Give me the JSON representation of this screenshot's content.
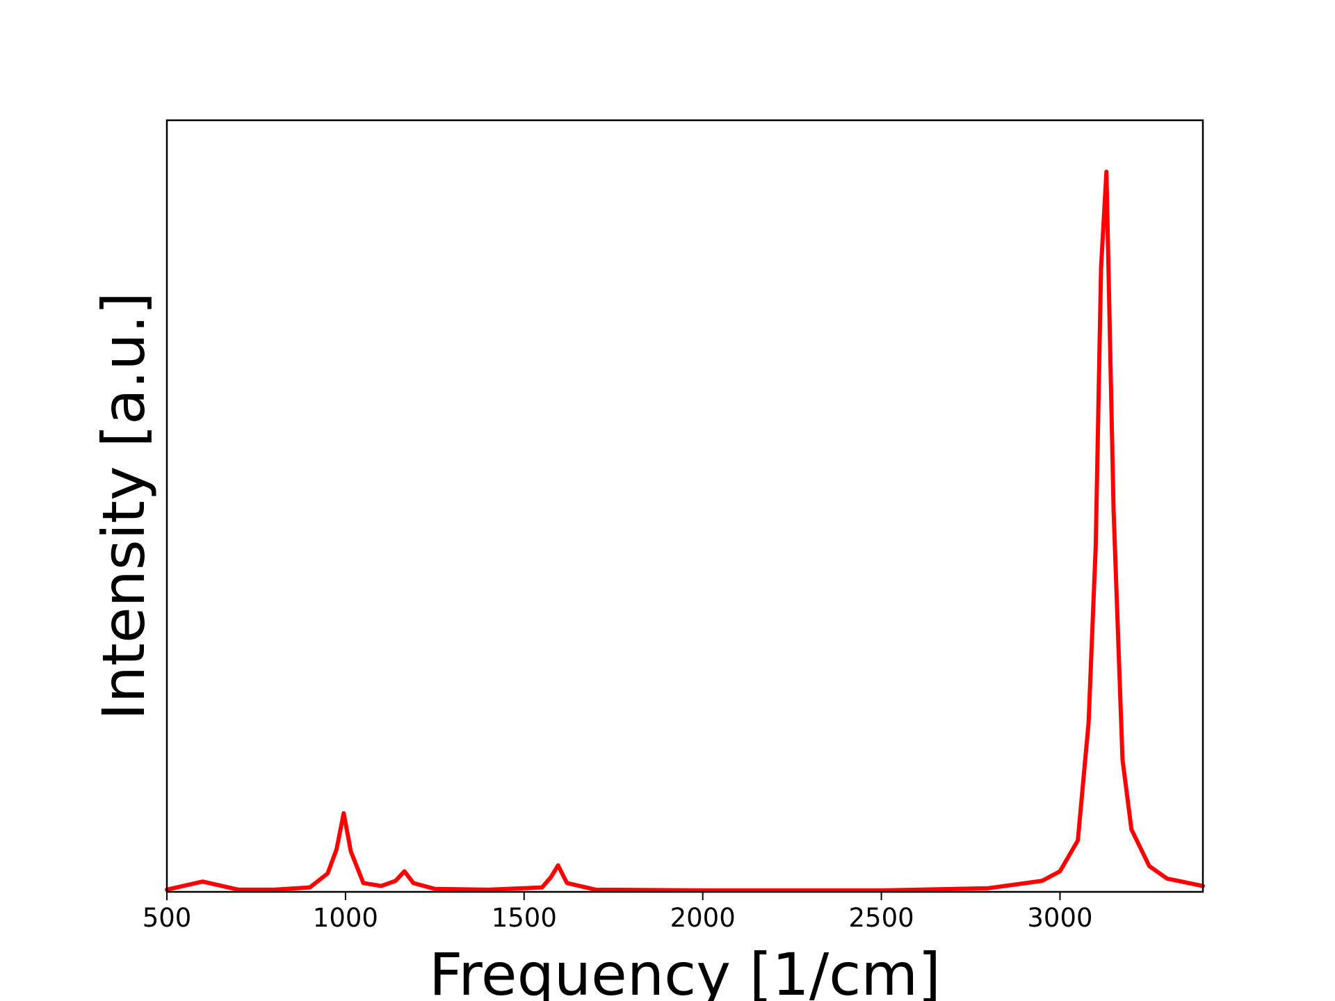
{
  "chart_data": {
    "type": "line",
    "title": "",
    "xlabel": "Frequency [1/cm]",
    "ylabel": "Intensity [a.u.]",
    "xlim": [
      500,
      3400
    ],
    "ylim": [
      0,
      1.05
    ],
    "x_ticks": [
      500,
      1000,
      1500,
      2000,
      2500,
      3000
    ],
    "y_ticks_shown": false,
    "grid": false,
    "legend": "none",
    "series": [
      {
        "color": "#ff0000",
        "peaks": [
          {
            "x": 600,
            "y": 0.014
          },
          {
            "x": 850,
            "y": 0.003
          },
          {
            "x": 995,
            "y": 0.107
          },
          {
            "x": 1165,
            "y": 0.028
          },
          {
            "x": 1595,
            "y": 0.036
          },
          {
            "x": 3130,
            "y": 0.98
          }
        ],
        "x": [
          500,
          600,
          700,
          800,
          900,
          950,
          975,
          995,
          1015,
          1050,
          1100,
          1140,
          1165,
          1190,
          1250,
          1400,
          1550,
          1575,
          1595,
          1620,
          1700,
          2000,
          2500,
          2800,
          2950,
          3000,
          3050,
          3080,
          3100,
          3115,
          3130,
          3150,
          3175,
          3200,
          3250,
          3300,
          3400
        ],
        "y": [
          0.003,
          0.014,
          0.003,
          0.003,
          0.006,
          0.025,
          0.058,
          0.107,
          0.055,
          0.012,
          0.008,
          0.015,
          0.028,
          0.012,
          0.004,
          0.003,
          0.006,
          0.02,
          0.036,
          0.012,
          0.003,
          0.002,
          0.002,
          0.005,
          0.015,
          0.028,
          0.07,
          0.23,
          0.47,
          0.85,
          0.98,
          0.52,
          0.18,
          0.085,
          0.035,
          0.018,
          0.008
        ]
      }
    ]
  }
}
